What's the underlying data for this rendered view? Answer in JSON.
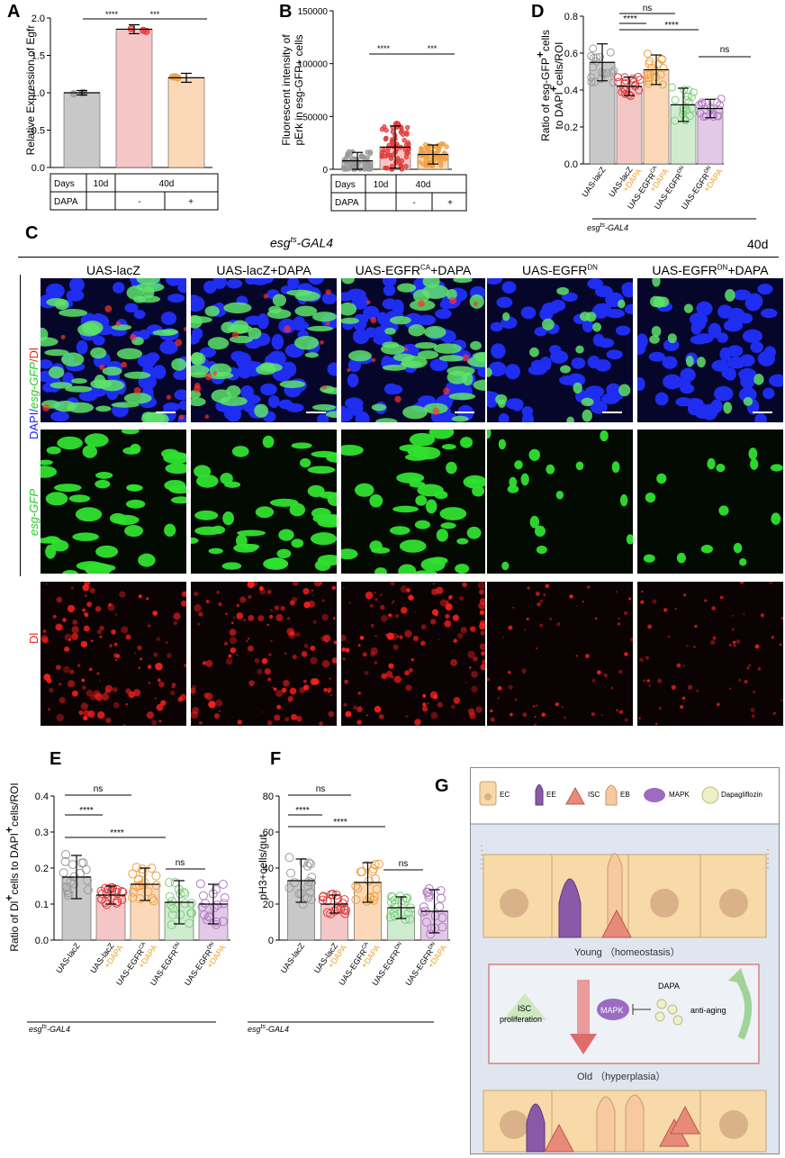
{
  "letters": {
    "A": "A",
    "B": "B",
    "C": "C",
    "D": "D",
    "E": "E",
    "F": "F",
    "G": "G"
  },
  "panelA": {
    "ylabel": "Relative Expression of Egfr",
    "yticks": [
      "0.0",
      "0.5",
      "1.0",
      "1.5",
      "2.0"
    ],
    "sig": [
      "****",
      "***"
    ],
    "table_row1": [
      "Days",
      "10d",
      "40d"
    ],
    "table_row2": [
      "DAPA",
      "-",
      "+"
    ]
  },
  "panelB": {
    "ylabel1": "Fluorescent intensity of",
    "ylabel2": "pErk in esg-GFP+ cells",
    "yticks": [
      "0",
      "50000",
      "100000",
      "150000"
    ],
    "sig": [
      "****",
      "***"
    ],
    "table_row1": [
      "Days",
      "10d",
      "40d"
    ],
    "table_row2": [
      "DAPA",
      "-",
      "+"
    ]
  },
  "panelD": {
    "ylabel1": "Ratio of esg-GFP",
    "ylabel2": "to DAPI",
    "ylabel3": "cells/ROI",
    "ylabel_cells": "cells",
    "yticks": [
      "0.0",
      "0.2",
      "0.4",
      "0.6",
      "0.8"
    ],
    "sig": [
      "ns",
      "****",
      "****",
      "ns"
    ],
    "genotype": "esg",
    "genotype_sup": "ts",
    "genotype_rest": "-GAL4"
  },
  "panelC": {
    "genotype": "esg",
    "genotype_sup": "ts",
    "genotype_rest": "-GAL4",
    "age": "40d",
    "columns": [
      "UAS-lacZ",
      "UAS-lacZ+DAPA",
      "UAS-EGFR",
      "UAS-EGFR",
      "UAS-EGFR"
    ],
    "col_sups": [
      "",
      "",
      "CA",
      "DN",
      "DN"
    ],
    "col_suffix": [
      "",
      "",
      "+DAPA",
      "",
      "+DAPA"
    ],
    "row1_label_parts": [
      "DAPI/",
      "esg-GFP",
      "/Dl"
    ],
    "row2_label": "esg-GFP",
    "row3_label": "Dl"
  },
  "panelE": {
    "ylabel": "Ratio of Dl",
    "ylabel2": "cells to DAPI",
    "ylabel3": "cells/ROI",
    "yticks": [
      "0.0",
      "0.1",
      "0.2",
      "0.3",
      "0.4"
    ],
    "sig": [
      "ns",
      "****",
      "****",
      "ns"
    ],
    "genotype": "esg",
    "genotype_sup": "ts",
    "genotype_rest": "-GAL4"
  },
  "panelF": {
    "ylabel": "pH3+cells/gut",
    "yticks": [
      "0",
      "20",
      "40",
      "60",
      "80"
    ],
    "sig": [
      "ns",
      "****",
      "****",
      "ns"
    ],
    "genotype": "esg",
    "genotype_sup": "ts",
    "genotype_rest": "-GAL4"
  },
  "xcats": {
    "lines": [
      [
        "UAS-lacZ",
        ""
      ],
      [
        "UAS-lacZ",
        "+DAPA"
      ],
      [
        "UAS-EGFR",
        "+DAPA"
      ],
      [
        "UAS-EGFR",
        ""
      ],
      [
        "UAS-EGFR",
        "+DAPA"
      ]
    ],
    "sups": [
      "",
      "",
      "CA",
      "DN",
      "DN"
    ]
  },
  "panelG": {
    "legend": [
      "EC",
      "EE",
      "ISC",
      "EB",
      "MAPK",
      "Dapagliflozin"
    ],
    "young": "Young （homeostasis）",
    "old": "Old   （hyperplasia）",
    "isc1": "ISC",
    "isc2": "proliferation",
    "mapk": "MAPK",
    "dapa": "DAPA",
    "antiaging": "anti-aging"
  },
  "colors": {
    "grey": "#c8c8c8",
    "red": "#f5c6c6",
    "orange": "#fbd9b8",
    "green": "#cfeccf",
    "purple": "#e3c9e8",
    "greyDot": "#9a9a9a",
    "redDot": "#e23b3b",
    "orangeDot": "#f0a040",
    "greenDot": "#7fcf7f",
    "purpleDot": "#b07ac0",
    "dapaLabel": "#f0a020"
  },
  "chart_data": [
    {
      "type": "bar",
      "panel": "A",
      "ylabel": "Relative Expression of Egfr",
      "ylim": [
        0,
        2.0
      ],
      "categories": [
        "10d -",
        "40d -",
        "40d +"
      ],
      "values": [
        1.0,
        1.85,
        1.2
      ],
      "errors": [
        0.03,
        0.06,
        0.06
      ]
    },
    {
      "type": "bar",
      "panel": "B",
      "ylabel": "Fluorescent intensity of pErk in esg-GFP+ cells",
      "ylim": [
        0,
        150000
      ],
      "categories": [
        "10d -",
        "40d -",
        "40d +"
      ],
      "values": [
        8000,
        21000,
        14000
      ],
      "errors": [
        8000,
        20000,
        9000
      ]
    },
    {
      "type": "bar",
      "panel": "D",
      "ylabel": "Ratio of esg-GFP+ cells to DAPI+ cells/ROI",
      "ylim": [
        0,
        0.8
      ],
      "categories": [
        "UAS-lacZ",
        "UAS-lacZ +DAPA",
        "UAS-EGFRCA +DAPA",
        "UAS-EGFRDN",
        "UAS-EGFRDN +DAPA"
      ],
      "values": [
        0.55,
        0.42,
        0.51,
        0.32,
        0.3
      ],
      "errors": [
        0.1,
        0.05,
        0.08,
        0.09,
        0.05
      ]
    },
    {
      "type": "bar",
      "panel": "E",
      "ylabel": "Ratio of Dl+ cells to DAPI+ cells/ROI",
      "ylim": [
        0,
        0.4
      ],
      "categories": [
        "UAS-lacZ",
        "UAS-lacZ +DAPA",
        "UAS-EGFRCA +DAPA",
        "UAS-EGFRDN",
        "UAS-EGFRDN +DAPA"
      ],
      "values": [
        0.175,
        0.125,
        0.155,
        0.105,
        0.1
      ],
      "errors": [
        0.06,
        0.025,
        0.045,
        0.06,
        0.055
      ]
    },
    {
      "type": "bar",
      "panel": "F",
      "ylabel": "pH3+cells/gut",
      "ylim": [
        0,
        80
      ],
      "categories": [
        "UAS-lacZ",
        "UAS-lacZ +DAPA",
        "UAS-EGFRCA +DAPA",
        "UAS-EGFRDN",
        "UAS-EGFRDN +DAPA"
      ],
      "values": [
        33,
        20,
        32,
        18,
        16
      ],
      "errors": [
        12,
        5,
        11,
        6,
        12
      ]
    }
  ]
}
